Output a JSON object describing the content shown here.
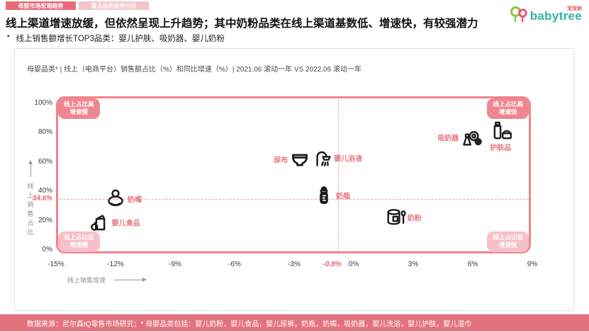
{
  "tabs": [
    {
      "label": "母婴市场宏观趋势",
      "active": true
    },
    {
      "label": "重点品类趋势分析",
      "active": false
    }
  ],
  "logo": {
    "brand": "babytree",
    "brand_cn": "宝宝树"
  },
  "header": {
    "title": "线上渠道增速放缓，但依然呈现上升趋势；其中奶粉品类在线上渠道基数低、增速快，有较强潜力",
    "bullet": "线上销售额增长TOP3品类：婴儿护肤、吸奶器、婴儿奶粉"
  },
  "chart_data": {
    "type": "scatter",
    "title": "母婴品类* | 线上（电商平台）销售额占比（%）和同比增速（%）| 2021.06 滚动一年 VS 2022.06 滚动一年",
    "xlabel": "线上销售增速",
    "ylabel": "线上销售占比",
    "xlim": [
      -15,
      9
    ],
    "ylim": [
      0,
      100
    ],
    "x_ticks": [
      {
        "v": -15,
        "label": "-15%"
      },
      {
        "v": -12,
        "label": "-12%"
      },
      {
        "v": -9,
        "label": "-9%"
      },
      {
        "v": -6,
        "label": "-6%"
      },
      {
        "v": -3,
        "label": "-3%"
      },
      {
        "v": -0.8,
        "label": "-0.8%",
        "highlight": true,
        "dx": -8
      },
      {
        "v": 0,
        "label": "0%"
      },
      {
        "v": 3,
        "label": "3%"
      },
      {
        "v": 6,
        "label": "6%"
      },
      {
        "v": 9,
        "label": "9%"
      }
    ],
    "y_ticks": [
      {
        "v": 100,
        "label": "100%"
      },
      {
        "v": 80,
        "label": "80%"
      },
      {
        "v": 60,
        "label": "60%"
      },
      {
        "v": 40,
        "label": "40%"
      },
      {
        "v": 34.6,
        "label": "34.6%",
        "highlight": true
      },
      {
        "v": 20,
        "label": "20%"
      },
      {
        "v": 0,
        "label": "0%"
      }
    ],
    "mean_point": {
      "x": -0.8,
      "y": 34.6
    },
    "quadrants": [
      {
        "corner": "top-left",
        "lines": [
          "线上占比高",
          "增速慢"
        ],
        "strong": true
      },
      {
        "corner": "top-right",
        "lines": [
          "线上占比高",
          "增速快"
        ],
        "strong": true
      },
      {
        "corner": "bottom-left",
        "lines": [
          "线上占比低",
          "增速慢"
        ],
        "strong": false
      },
      {
        "corner": "bottom-right",
        "lines": [
          "线上占比低",
          "增速快"
        ],
        "strong": false
      }
    ],
    "points": [
      {
        "label": "奶嘴",
        "icon": "pacifier",
        "x": -12,
        "y": 34.6,
        "label_side": "right"
      },
      {
        "label": "婴儿食品",
        "icon": "baby-food",
        "x": -12.8,
        "y": 19,
        "label_side": "right"
      },
      {
        "label": "尿布",
        "icon": "diaper",
        "x": -2.7,
        "y": 62,
        "label_side": "left"
      },
      {
        "label": "婴儿浴液",
        "icon": "shower",
        "x": -1.6,
        "y": 63,
        "label_side": "right"
      },
      {
        "label": "奶瓶",
        "icon": "baby-bottle",
        "x": -1.5,
        "y": 37,
        "label_side": "right"
      },
      {
        "label": "奶粉",
        "icon": "milk-powder",
        "x": 2.1,
        "y": 22,
        "label_side": "right"
      },
      {
        "label": "吸奶器",
        "icon": "breast-pump",
        "x": 5.9,
        "y": 77,
        "label_side": "left"
      },
      {
        "label": "护肤品",
        "icon": "skincare",
        "x": 7.4,
        "y": 82,
        "label_side": "bottom"
      }
    ],
    "colors": {
      "accent": "#ee8691",
      "accent_light": "#f6c0c6",
      "border": "#f0848e",
      "category_label": "#e8747f",
      "highlight_tick": "#ee5f6d",
      "footer": "#e2737e"
    },
    "legend": "none",
    "grid": "mean-crosshair-dashed"
  },
  "footer": {
    "text": "数据来源：尼尔森IQ零售市场研究；* 母婴品类包括：婴儿奶粉，婴儿食品，婴儿尿裤，奶瓶，奶嘴，吸奶器，婴儿洗浴，婴儿护肤，婴儿湿巾"
  }
}
